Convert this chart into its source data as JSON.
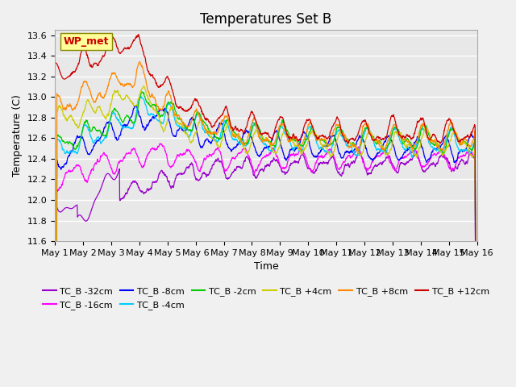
{
  "title": "Temperatures Set B",
  "xlabel": "Time",
  "ylabel": "Temperature (C)",
  "ylim": [
    11.6,
    13.65
  ],
  "xlim": [
    0,
    15
  ],
  "xtick_labels": [
    "May 1",
    "May 2",
    "May 3",
    "May 4",
    "May 5",
    "May 6",
    "May 7",
    "May 8",
    "May 9",
    "May 10",
    "May 11",
    "May 12",
    "May 13",
    "May 14",
    "May 15",
    "May 16"
  ],
  "ytick_values": [
    11.6,
    11.8,
    12.0,
    12.2,
    12.4,
    12.6,
    12.8,
    13.0,
    13.2,
    13.4,
    13.6
  ],
  "series": [
    {
      "label": "TC_B -32cm",
      "color": "#9900cc"
    },
    {
      "label": "TC_B -16cm",
      "color": "#ff00ff"
    },
    {
      "label": "TC_B -8cm",
      "color": "#0000ff"
    },
    {
      "label": "TC_B -4cm",
      "color": "#00ccff"
    },
    {
      "label": "TC_B -2cm",
      "color": "#00cc00"
    },
    {
      "label": "TC_B +4cm",
      "color": "#cccc00"
    },
    {
      "label": "TC_B +8cm",
      "color": "#ff8800"
    },
    {
      "label": "TC_B +12cm",
      "color": "#cc0000"
    }
  ],
  "wp_met_box_color": "#ffff99",
  "wp_met_text_color": "#cc0000",
  "wp_met_border_color": "#888800",
  "plot_bg_color": "#e8e8e8",
  "grid_color": "#ffffff",
  "title_fontsize": 12,
  "axis_label_fontsize": 9,
  "tick_fontsize": 8,
  "legend_fontsize": 8
}
